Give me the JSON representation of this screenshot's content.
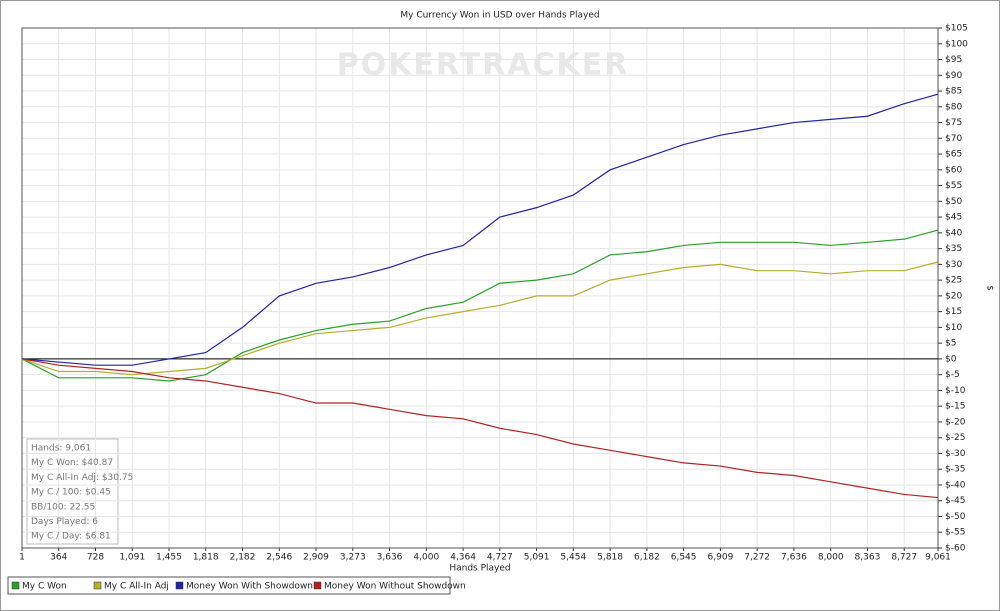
{
  "chart_data": {
    "type": "line",
    "title": "My Currency Won in USD over Hands Played",
    "watermark": "POKERTRACKER",
    "x_label": "Hands Played",
    "y_label": "$",
    "grid": true,
    "xlim": [
      1,
      9061
    ],
    "ylim": [
      -60,
      105
    ],
    "xticks": [
      1,
      {
        "value": 364,
        "label": "364"
      },
      {
        "value": 728,
        "label": "728"
      },
      {
        "value": 1091,
        "label": "1,091"
      },
      {
        "value": 1455,
        "label": "1,455"
      },
      {
        "value": 1818,
        "label": "1,818"
      },
      {
        "value": 2182,
        "label": "2,182"
      },
      {
        "value": 2546,
        "label": "2,546"
      },
      {
        "value": 2909,
        "label": "2,909"
      },
      {
        "value": 3273,
        "label": "3,273"
      },
      {
        "value": 3636,
        "label": "3,636"
      },
      {
        "value": 4000,
        "label": "4,000"
      },
      {
        "value": 4364,
        "label": "4,364"
      },
      {
        "value": 4727,
        "label": "4,727"
      },
      {
        "value": 5091,
        "label": "5,091"
      },
      {
        "value": 5454,
        "label": "5,454"
      },
      {
        "value": 5818,
        "label": "5,818"
      },
      {
        "value": 6182,
        "label": "6,182"
      },
      {
        "value": 6545,
        "label": "6,545"
      },
      {
        "value": 6909,
        "label": "6,909"
      },
      {
        "value": 7272,
        "label": "7,272"
      },
      {
        "value": 7636,
        "label": "7,636"
      },
      {
        "value": 8000,
        "label": "8,000"
      },
      {
        "value": 8363,
        "label": "8,363"
      },
      {
        "value": 8727,
        "label": "8,727"
      },
      {
        "value": 9061,
        "label": "9,061"
      }
    ],
    "yticks": [
      {
        "value": 105,
        "label": "$105"
      },
      {
        "value": 100,
        "label": "$100"
      },
      {
        "value": 95,
        "label": "$95"
      },
      {
        "value": 90,
        "label": "$90"
      },
      {
        "value": 85,
        "label": "$85"
      },
      {
        "value": 80,
        "label": "$80"
      },
      {
        "value": 75,
        "label": "$75"
      },
      {
        "value": 70,
        "label": "$70"
      },
      {
        "value": 65,
        "label": "$65"
      },
      {
        "value": 60,
        "label": "$60"
      },
      {
        "value": 55,
        "label": "$55"
      },
      {
        "value": 50,
        "label": "$50"
      },
      {
        "value": 45,
        "label": "$45"
      },
      {
        "value": 40,
        "label": "$40"
      },
      {
        "value": 35,
        "label": "$35"
      },
      {
        "value": 30,
        "label": "$30"
      },
      {
        "value": 25,
        "label": "$25"
      },
      {
        "value": 20,
        "label": "$20"
      },
      {
        "value": 15,
        "label": "$15"
      },
      {
        "value": 10,
        "label": "$10"
      },
      {
        "value": 5,
        "label": "$5"
      },
      {
        "value": 0,
        "label": "$0"
      },
      {
        "value": -5,
        "label": "$-5"
      },
      {
        "value": -10,
        "label": "$-10"
      },
      {
        "value": -15,
        "label": "$-15"
      },
      {
        "value": -20,
        "label": "$-20"
      },
      {
        "value": -25,
        "label": "$-25"
      },
      {
        "value": -30,
        "label": "$-30"
      },
      {
        "value": -35,
        "label": "$-35"
      },
      {
        "value": -40,
        "label": "$-40"
      },
      {
        "value": -45,
        "label": "$-45"
      },
      {
        "value": -50,
        "label": "$-50"
      },
      {
        "value": -55,
        "label": "$-55"
      },
      {
        "value": -60,
        "label": "$-60"
      }
    ],
    "x": [
      1,
      364,
      728,
      1091,
      1455,
      1818,
      2182,
      2546,
      2909,
      3273,
      3636,
      4000,
      4364,
      4727,
      5091,
      5454,
      5818,
      6182,
      6545,
      6909,
      7272,
      7636,
      8000,
      8363,
      8727,
      9061
    ],
    "series": [
      {
        "name": "My C Won",
        "color": "#2aa02a",
        "values": [
          0,
          -6,
          -6,
          -6,
          -7,
          -5,
          2,
          6,
          9,
          11,
          12,
          16,
          18,
          24,
          25,
          27,
          33,
          34,
          36,
          37,
          37,
          37,
          36,
          37,
          38,
          40.87
        ]
      },
      {
        "name": "My C All-In Adj",
        "color": "#b5ad2c",
        "values": [
          0,
          -4,
          -4,
          -5,
          -4,
          -3,
          1,
          5,
          8,
          9,
          10,
          13,
          15,
          17,
          20,
          20,
          25,
          27,
          29,
          30,
          28,
          28,
          27,
          28,
          28,
          30.75
        ]
      },
      {
        "name": "Money Won With Showdown",
        "color": "#2323a3",
        "values": [
          0,
          -1,
          -2,
          -2,
          0,
          2,
          10,
          20,
          24,
          26,
          29,
          33,
          36,
          45,
          48,
          52,
          60,
          64,
          68,
          71,
          73,
          75,
          76,
          77,
          81,
          84
        ]
      },
      {
        "name": "Money Won Without Showdown",
        "color": "#b02323",
        "values": [
          0,
          -2,
          -3,
          -4,
          -6,
          -7,
          -9,
          -11,
          -14,
          -14,
          -16,
          -18,
          -19,
          -22,
          -24,
          -27,
          -29,
          -31,
          -33,
          -34,
          -36,
          -37,
          -39,
          -41,
          -43,
          -44
        ]
      }
    ],
    "stats": [
      "Hands: 9,061",
      "My C Won: $40.87",
      "My C All-In Adj: $30.75",
      "My C / 100: $0.45",
      "BB/100: 22.55",
      "Days Played: 6",
      "My C / Day: $6.81"
    ]
  }
}
